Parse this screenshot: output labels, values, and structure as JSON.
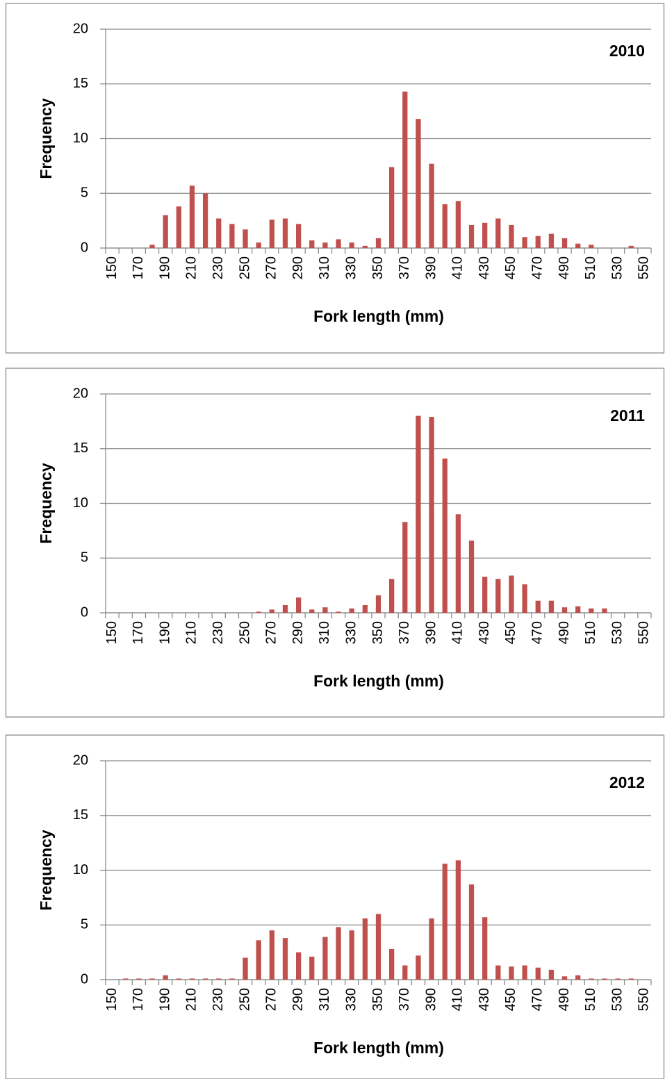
{
  "chart_data": [
    {
      "type": "bar",
      "annotation": "2010",
      "xlabel": "Fork length (mm)",
      "ylabel": "Frequency",
      "color": "#c0504d",
      "grid": true,
      "categories": [
        150,
        null,
        170,
        null,
        190,
        null,
        210,
        null,
        230,
        null,
        250,
        null,
        270,
        null,
        290,
        null,
        310,
        null,
        330,
        null,
        350,
        null,
        370,
        null,
        390,
        null,
        410,
        null,
        430,
        null,
        450,
        null,
        470,
        null,
        490,
        null,
        510,
        null,
        530,
        null,
        550
      ],
      "values": [
        0,
        0,
        0,
        0.3,
        3,
        3.8,
        5.7,
        5,
        2.7,
        2.2,
        1.7,
        0.5,
        2.6,
        2.7,
        2.2,
        0.7,
        0.5,
        0.8,
        0.5,
        0.2,
        0.9,
        7.4,
        14.3,
        11.8,
        7.7,
        4,
        4.3,
        2.1,
        2.3,
        2.7,
        2.1,
        1,
        1.1,
        1.3,
        0.9,
        0.4,
        0.3,
        0,
        0,
        0.2,
        0
      ],
      "ylim": [
        0,
        20
      ],
      "yticks": [
        0,
        5,
        10,
        15,
        20
      ]
    },
    {
      "type": "bar",
      "annotation": "2011",
      "xlabel": "Fork length (mm)",
      "ylabel": "Frequency",
      "color": "#c0504d",
      "grid": true,
      "categories": [
        150,
        null,
        170,
        null,
        190,
        null,
        210,
        null,
        230,
        null,
        250,
        null,
        270,
        null,
        290,
        null,
        310,
        null,
        330,
        null,
        350,
        null,
        370,
        null,
        390,
        null,
        410,
        null,
        430,
        null,
        450,
        null,
        470,
        null,
        490,
        null,
        510,
        null,
        530,
        null,
        550
      ],
      "values": [
        0,
        0,
        0,
        0,
        0,
        0,
        0,
        0,
        0,
        0,
        0,
        0.1,
        0.3,
        0.7,
        1.4,
        0.3,
        0.5,
        0.1,
        0.4,
        0.7,
        1.6,
        3.1,
        8.3,
        18,
        17.9,
        14.1,
        9,
        6.6,
        3.3,
        3.1,
        3.4,
        2.6,
        1.1,
        1.1,
        0.5,
        0.6,
        0.4,
        0.4,
        0,
        0,
        0
      ],
      "ylim": [
        0,
        20
      ],
      "yticks": [
        0,
        5,
        10,
        15,
        20
      ]
    },
    {
      "type": "bar",
      "annotation": "2012",
      "xlabel": "Fork length (mm)",
      "ylabel": "Frequency",
      "color": "#c0504d",
      "grid": true,
      "categories": [
        150,
        null,
        170,
        null,
        190,
        null,
        210,
        null,
        230,
        null,
        250,
        null,
        270,
        null,
        290,
        null,
        310,
        null,
        330,
        null,
        350,
        null,
        370,
        null,
        390,
        null,
        410,
        null,
        430,
        null,
        450,
        null,
        470,
        null,
        490,
        null,
        510,
        null,
        530,
        null,
        550
      ],
      "values": [
        0,
        0.1,
        0.1,
        0.1,
        0.4,
        0.1,
        0.1,
        0.1,
        0.1,
        0.1,
        2,
        3.6,
        4.5,
        3.8,
        2.5,
        2.1,
        3.9,
        4.8,
        4.5,
        5.6,
        6,
        2.8,
        1.3,
        2.2,
        5.6,
        10.6,
        10.9,
        8.7,
        5.7,
        1.3,
        1.2,
        1.3,
        1.1,
        0.9,
        0.3,
        0.4,
        0.1,
        0.1,
        0.1,
        0.1,
        0
      ],
      "ylim": [
        0,
        20
      ],
      "yticks": [
        0,
        5,
        10,
        15,
        20
      ]
    }
  ]
}
